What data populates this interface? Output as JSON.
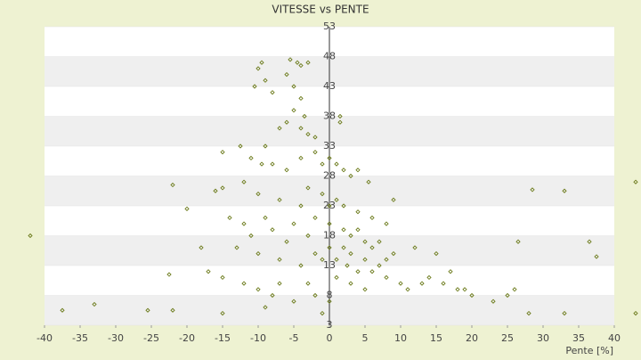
{
  "chart_data": {
    "type": "scatter",
    "title": "VITESSE vs PENTE",
    "x_label": "Pente [%]",
    "color": "#6b7a1a",
    "xlim": [
      -40,
      40
    ],
    "ylim": [
      3,
      53
    ],
    "xticks": [
      -40,
      -35,
      -30,
      -25,
      -20,
      -15,
      -10,
      -5,
      0,
      5,
      10,
      15,
      20,
      25,
      30,
      35,
      40
    ],
    "yticks": [
      3,
      8,
      13,
      18,
      23,
      28,
      33,
      38,
      43,
      48,
      53
    ],
    "grid": true,
    "x": [
      -42,
      43,
      -37.5,
      -33,
      -25.5,
      -22,
      -22.5,
      -22,
      -20,
      28.5,
      33,
      36.5,
      37.5,
      43,
      33,
      28,
      26.5,
      -10,
      -9.5,
      -5.5,
      -4.5,
      -4,
      -3,
      -10.5,
      -9,
      -8,
      -6,
      -5,
      -4,
      1.5,
      1.5,
      -3.5,
      -5,
      -4,
      -3,
      -2,
      -6,
      -7,
      -9,
      -12.5,
      -15,
      -11,
      -9.5,
      -8,
      -6,
      -4,
      -2,
      -1,
      0,
      1,
      2,
      3,
      4,
      5.5,
      9,
      -16,
      -15,
      -12,
      -10,
      -7,
      -3,
      -1,
      1,
      2,
      4,
      6,
      8,
      -14,
      -12,
      -8,
      -5,
      -2,
      0,
      2,
      3,
      5,
      7,
      9,
      12,
      15,
      -13,
      -10,
      -7,
      -4,
      -1,
      1,
      2.5,
      4,
      6,
      8,
      10,
      13,
      16,
      18,
      20,
      23,
      25,
      26,
      -17,
      -15,
      -12,
      -10,
      -8,
      -5,
      -2,
      0,
      -1,
      -3,
      5,
      3,
      11,
      14,
      17,
      19,
      -6,
      -4,
      -3,
      0,
      1,
      3,
      5,
      7,
      -9,
      -11,
      -18,
      -15,
      -9,
      -7,
      -2,
      0,
      2,
      4,
      6,
      8
    ],
    "y": [
      18,
      27,
      5.5,
      6.5,
      5.5,
      5.5,
      11.5,
      26.5,
      22.5,
      25.7,
      25.5,
      17,
      14.5,
      5,
      5,
      5,
      17,
      46,
      47,
      47.5,
      47,
      46.5,
      47,
      43,
      44,
      42,
      45,
      43,
      41,
      38,
      37,
      38,
      39,
      36,
      35,
      34.5,
      37,
      36,
      33,
      33,
      32,
      31,
      30,
      30,
      29,
      31,
      32,
      30,
      31,
      30,
      29,
      28,
      29,
      27,
      24,
      25.5,
      26,
      27,
      25,
      24,
      26,
      25,
      24,
      23,
      22,
      21,
      20,
      21,
      20,
      19,
      20,
      21,
      20,
      19,
      18,
      17,
      17,
      15,
      16,
      15,
      16,
      15,
      14,
      13,
      14,
      14,
      13,
      12,
      12,
      11,
      10,
      10,
      10,
      9,
      8,
      7,
      8,
      9,
      12,
      11,
      10,
      9,
      8,
      7,
      8,
      7,
      5,
      10,
      9,
      10,
      9,
      11,
      12,
      9,
      17,
      23,
      18,
      16,
      11,
      15,
      14,
      13,
      21,
      18,
      16,
      5,
      6,
      10,
      15,
      23,
      16,
      19,
      16,
      14
    ]
  }
}
